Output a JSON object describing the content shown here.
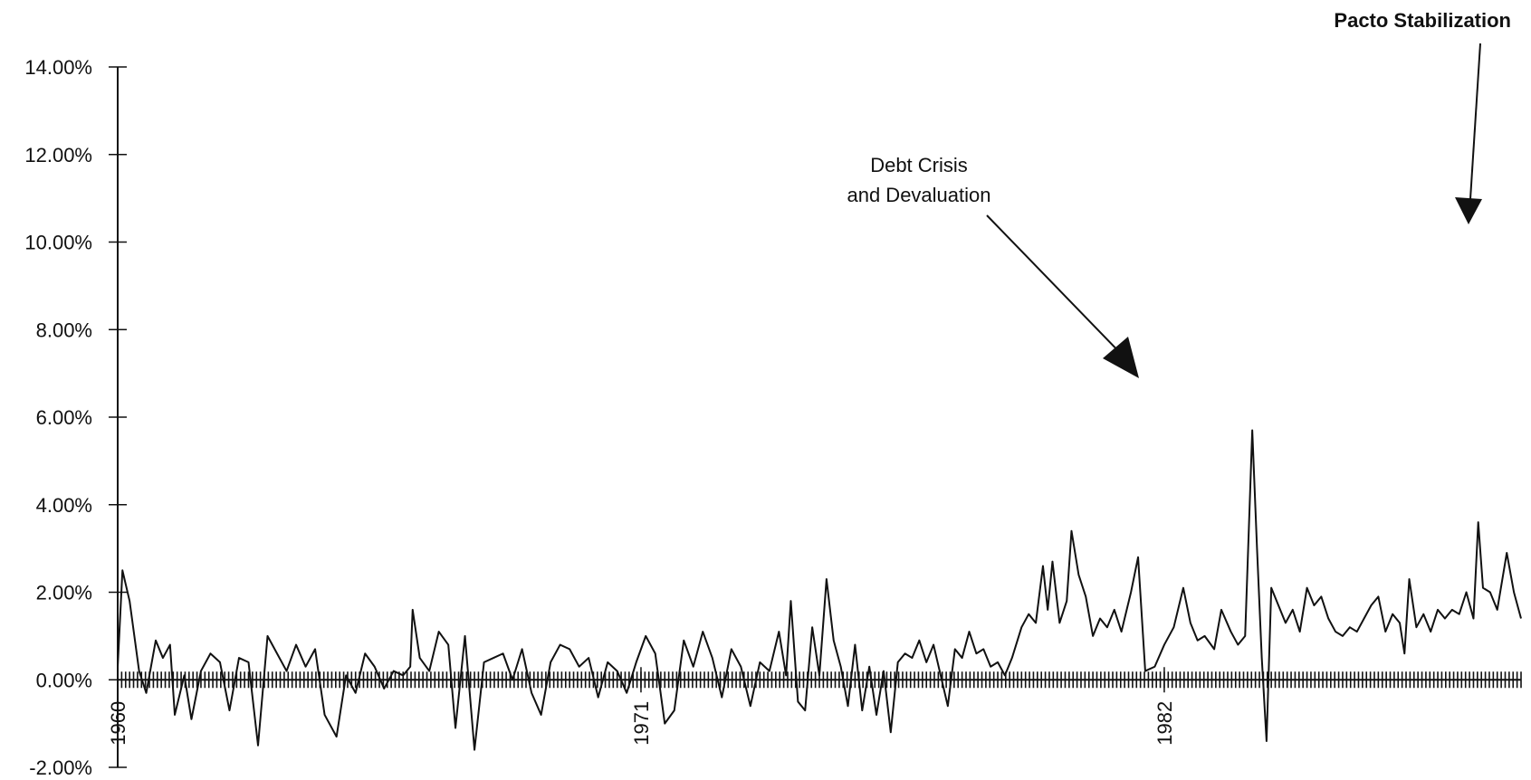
{
  "chart_data": {
    "type": "line",
    "title": "",
    "xlabel": "",
    "ylabel": "",
    "ylim": [
      -0.02,
      0.14
    ],
    "xlim": [
      1960,
      1989.5
    ],
    "y_ticks": [
      -0.02,
      0,
      0.02,
      0.04,
      0.06,
      0.08,
      0.1,
      0.12,
      0.14
    ],
    "y_tick_labels": [
      "-2.00%",
      "0.00%",
      "2.00%",
      "4.00%",
      "6.00%",
      "8.00%",
      "10.00%",
      "12.00%",
      "14.00%"
    ],
    "x_tick_labels": [
      {
        "year": 1960,
        "label": "1960"
      },
      {
        "year": 1971,
        "label": "1971"
      },
      {
        "year": 1982,
        "label": "1982"
      }
    ],
    "grid": false,
    "legend": "none",
    "series": [
      {
        "points": [
          [
            1960.0,
            0.003
          ],
          [
            1960.1,
            0.025
          ],
          [
            1960.25,
            0.018
          ],
          [
            1960.45,
            0.002
          ],
          [
            1960.6,
            -0.003
          ],
          [
            1960.8,
            0.009
          ],
          [
            1960.95,
            0.005
          ],
          [
            1961.1,
            0.008
          ],
          [
            1961.2,
            -0.008
          ],
          [
            1961.4,
            0.001
          ],
          [
            1961.55,
            -0.009
          ],
          [
            1961.75,
            0.002
          ],
          [
            1961.95,
            0.006
          ],
          [
            1962.15,
            0.004
          ],
          [
            1962.35,
            -0.007
          ],
          [
            1962.55,
            0.005
          ],
          [
            1962.75,
            0.004
          ],
          [
            1962.95,
            -0.015
          ],
          [
            1963.15,
            0.01
          ],
          [
            1963.35,
            0.006
          ],
          [
            1963.55,
            0.002
          ],
          [
            1963.75,
            0.008
          ],
          [
            1963.95,
            0.003
          ],
          [
            1964.15,
            0.007
          ],
          [
            1964.35,
            -0.008
          ],
          [
            1964.6,
            -0.013
          ],
          [
            1964.8,
            0.001
          ],
          [
            1965.0,
            -0.003
          ],
          [
            1965.2,
            0.006
          ],
          [
            1965.4,
            0.003
          ],
          [
            1965.6,
            -0.002
          ],
          [
            1965.8,
            0.002
          ],
          [
            1966.0,
            0.001
          ],
          [
            1966.15,
            0.003
          ],
          [
            1966.2,
            0.016
          ],
          [
            1966.35,
            0.005
          ],
          [
            1966.55,
            0.002
          ],
          [
            1966.75,
            0.011
          ],
          [
            1966.95,
            0.008
          ],
          [
            1967.1,
            -0.011
          ],
          [
            1967.3,
            0.01
          ],
          [
            1967.5,
            -0.016
          ],
          [
            1967.7,
            0.004
          ],
          [
            1967.9,
            0.005
          ],
          [
            1968.1,
            0.006
          ],
          [
            1968.3,
            0.0
          ],
          [
            1968.5,
            0.007
          ],
          [
            1968.7,
            -0.003
          ],
          [
            1968.9,
            -0.008
          ],
          [
            1969.1,
            0.004
          ],
          [
            1969.3,
            0.008
          ],
          [
            1969.5,
            0.007
          ],
          [
            1969.7,
            0.003
          ],
          [
            1969.9,
            0.005
          ],
          [
            1970.1,
            -0.004
          ],
          [
            1970.3,
            0.004
          ],
          [
            1970.5,
            0.002
          ],
          [
            1970.7,
            -0.003
          ],
          [
            1970.9,
            0.004
          ],
          [
            1971.1,
            0.01
          ],
          [
            1971.3,
            0.006
          ],
          [
            1971.5,
            -0.01
          ],
          [
            1971.7,
            -0.007
          ],
          [
            1971.9,
            0.009
          ],
          [
            1972.1,
            0.003
          ],
          [
            1972.3,
            0.011
          ],
          [
            1972.5,
            0.005
          ],
          [
            1972.7,
            -0.004
          ],
          [
            1972.9,
            0.007
          ],
          [
            1973.1,
            0.003
          ],
          [
            1973.3,
            -0.006
          ],
          [
            1973.5,
            0.004
          ],
          [
            1973.7,
            0.002
          ],
          [
            1973.9,
            0.011
          ],
          [
            1974.05,
            0.001
          ],
          [
            1974.15,
            0.018
          ],
          [
            1974.3,
            -0.005
          ],
          [
            1974.45,
            -0.007
          ],
          [
            1974.6,
            0.012
          ],
          [
            1974.75,
            0.001
          ],
          [
            1974.9,
            0.023
          ],
          [
            1975.05,
            0.009
          ],
          [
            1975.2,
            0.003
          ],
          [
            1975.35,
            -0.006
          ],
          [
            1975.5,
            0.008
          ],
          [
            1975.65,
            -0.007
          ],
          [
            1975.8,
            0.003
          ],
          [
            1975.95,
            -0.008
          ],
          [
            1976.1,
            0.002
          ],
          [
            1976.25,
            -0.012
          ],
          [
            1976.4,
            0.004
          ],
          [
            1976.55,
            0.006
          ],
          [
            1976.7,
            0.005
          ],
          [
            1976.85,
            0.009
          ],
          [
            1977.0,
            0.004
          ],
          [
            1977.15,
            0.008
          ],
          [
            1977.3,
            0.001
          ],
          [
            1977.45,
            -0.006
          ],
          [
            1977.6,
            0.007
          ],
          [
            1977.75,
            0.005
          ],
          [
            1977.9,
            0.011
          ],
          [
            1978.05,
            0.006
          ],
          [
            1978.2,
            0.007
          ],
          [
            1978.35,
            0.003
          ],
          [
            1978.5,
            0.004
          ],
          [
            1978.65,
            0.001
          ],
          [
            1978.8,
            0.005
          ],
          [
            1979.0,
            0.012
          ],
          [
            1979.15,
            0.015
          ],
          [
            1979.3,
            0.013
          ],
          [
            1979.45,
            0.026
          ],
          [
            1979.55,
            0.016
          ],
          [
            1979.65,
            0.027
          ],
          [
            1979.8,
            0.013
          ],
          [
            1979.95,
            0.018
          ],
          [
            1980.05,
            0.034
          ],
          [
            1980.2,
            0.024
          ],
          [
            1980.35,
            0.019
          ],
          [
            1980.5,
            0.01
          ],
          [
            1980.65,
            0.014
          ],
          [
            1980.8,
            0.012
          ],
          [
            1980.95,
            0.016
          ],
          [
            1981.1,
            0.011
          ],
          [
            1981.3,
            0.02
          ],
          [
            1981.45,
            0.028
          ],
          [
            1981.6,
            0.002
          ],
          [
            1981.8,
            0.003
          ],
          [
            1982.0,
            0.008
          ],
          [
            1982.2,
            0.012
          ],
          [
            1982.4,
            0.021
          ],
          [
            1982.55,
            0.013
          ],
          [
            1982.7,
            0.009
          ],
          [
            1982.85,
            0.01
          ],
          [
            1983.05,
            0.007
          ],
          [
            1983.2,
            0.016
          ],
          [
            1983.4,
            0.011
          ],
          [
            1983.55,
            0.008
          ],
          [
            1983.7,
            0.01
          ],
          [
            1983.85,
            0.057
          ],
          [
            1983.95,
            0.03
          ],
          [
            1984.05,
            0.005
          ],
          [
            1984.15,
            -0.014
          ],
          [
            1984.25,
            0.021
          ],
          [
            1984.4,
            0.017
          ],
          [
            1984.55,
            0.013
          ],
          [
            1984.7,
            0.016
          ],
          [
            1984.85,
            0.011
          ],
          [
            1985.0,
            0.021
          ],
          [
            1985.15,
            0.017
          ],
          [
            1985.3,
            0.019
          ],
          [
            1985.45,
            0.014
          ],
          [
            1985.6,
            0.011
          ],
          [
            1985.75,
            0.01
          ],
          [
            1985.9,
            0.012
          ],
          [
            1986.05,
            0.011
          ],
          [
            1986.2,
            0.014
          ],
          [
            1986.35,
            0.017
          ],
          [
            1986.5,
            0.019
          ],
          [
            1986.65,
            0.011
          ],
          [
            1986.8,
            0.015
          ],
          [
            1986.95,
            0.013
          ],
          [
            1987.05,
            0.006
          ],
          [
            1987.15,
            0.023
          ],
          [
            1987.3,
            0.012
          ],
          [
            1987.45,
            0.015
          ],
          [
            1987.6,
            0.011
          ],
          [
            1987.75,
            0.016
          ],
          [
            1987.9,
            0.014
          ],
          [
            1988.05,
            0.016
          ],
          [
            1988.2,
            0.015
          ],
          [
            1988.35,
            0.02
          ],
          [
            1988.5,
            0.014
          ],
          [
            1988.6,
            0.036
          ],
          [
            1988.7,
            0.021
          ],
          [
            1988.85,
            0.02
          ],
          [
            1989.0,
            0.016
          ],
          [
            1989.2,
            0.029
          ],
          [
            1989.35,
            0.02
          ],
          [
            1989.5,
            0.014
          ]
        ]
      }
    ],
    "annotations": [
      {
        "text": [
          "Debt Crisis",
          "and Devaluation"
        ]
      },
      {
        "text": [
          "Pacto Stabilization"
        ]
      }
    ]
  }
}
